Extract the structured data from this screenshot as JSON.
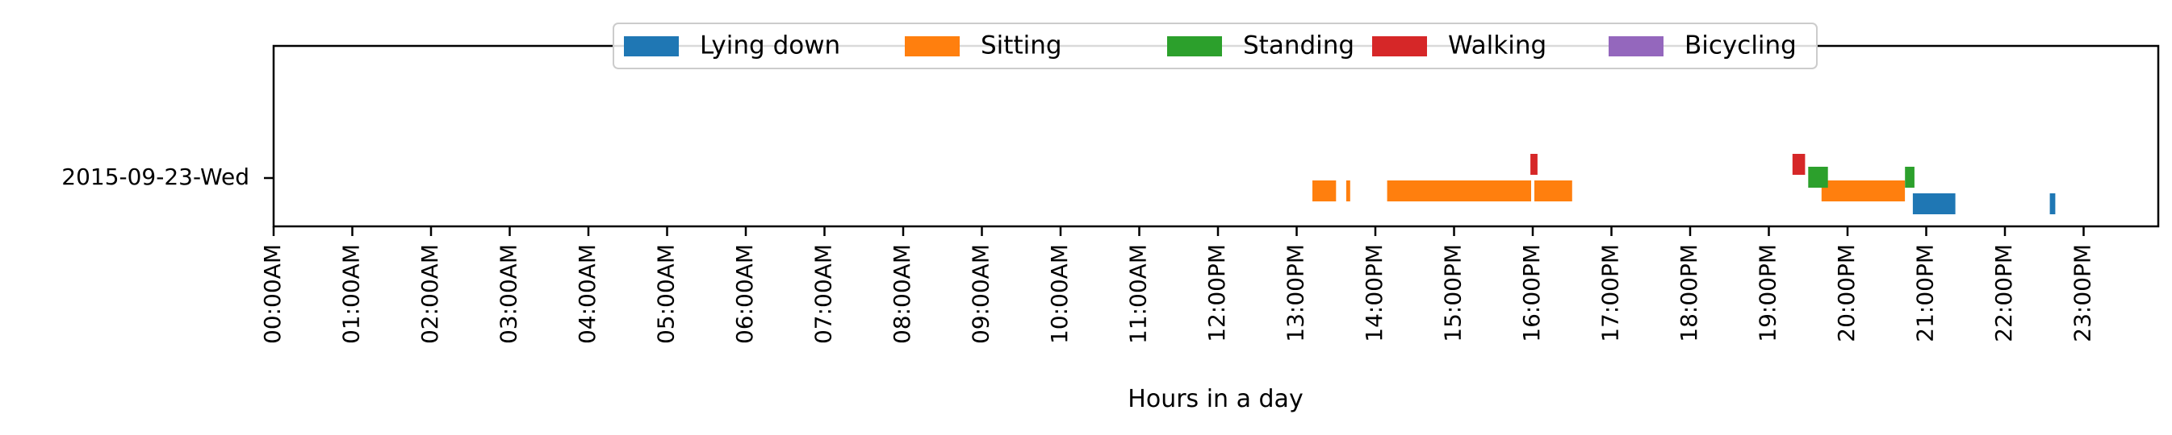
{
  "chart_data": {
    "type": "bar",
    "orientation": "horizontal-timeline",
    "xlabel": "Hours in a day",
    "ylabel": "",
    "xlim": [
      0,
      24
    ],
    "grid": false,
    "legend_placement": "top-center",
    "y_categories": [
      "2015-09-23-Wed"
    ],
    "x_ticks": [
      {
        "value": 0,
        "label": "00:00AM"
      },
      {
        "value": 1,
        "label": "01:00AM"
      },
      {
        "value": 2,
        "label": "02:00AM"
      },
      {
        "value": 3,
        "label": "03:00AM"
      },
      {
        "value": 4,
        "label": "04:00AM"
      },
      {
        "value": 5,
        "label": "05:00AM"
      },
      {
        "value": 6,
        "label": "06:00AM"
      },
      {
        "value": 7,
        "label": "07:00AM"
      },
      {
        "value": 8,
        "label": "08:00AM"
      },
      {
        "value": 9,
        "label": "09:00AM"
      },
      {
        "value": 10,
        "label": "10:00AM"
      },
      {
        "value": 11,
        "label": "11:00AM"
      },
      {
        "value": 12,
        "label": "12:00PM"
      },
      {
        "value": 13,
        "label": "13:00PM"
      },
      {
        "value": 14,
        "label": "14:00PM"
      },
      {
        "value": 15,
        "label": "15:00PM"
      },
      {
        "value": 16,
        "label": "16:00PM"
      },
      {
        "value": 17,
        "label": "17:00PM"
      },
      {
        "value": 18,
        "label": "18:00PM"
      },
      {
        "value": 19,
        "label": "19:00PM"
      },
      {
        "value": 20,
        "label": "20:00PM"
      },
      {
        "value": 21,
        "label": "21:00PM"
      },
      {
        "value": 22,
        "label": "22:00PM"
      },
      {
        "value": 23,
        "label": "23:00PM"
      }
    ],
    "series": [
      {
        "name": "Lying down",
        "color": "#1f77b4",
        "intervals": [
          [
            20.83,
            21.37
          ],
          [
            22.57,
            22.64
          ]
        ]
      },
      {
        "name": "Sitting",
        "color": "#ff7f0e",
        "intervals": [
          [
            13.2,
            13.5
          ],
          [
            13.63,
            13.68
          ],
          [
            14.15,
            15.98
          ],
          [
            16.02,
            16.5
          ],
          [
            19.67,
            20.73
          ]
        ]
      },
      {
        "name": "Standing",
        "color": "#2ca02c",
        "intervals": [
          [
            19.5,
            19.75
          ],
          [
            20.73,
            20.85
          ]
        ]
      },
      {
        "name": "Walking",
        "color": "#d62728",
        "intervals": [
          [
            15.97,
            16.06
          ],
          [
            19.3,
            19.46
          ]
        ]
      },
      {
        "name": "Bicycling",
        "color": "#9467bd",
        "intervals": []
      }
    ]
  }
}
